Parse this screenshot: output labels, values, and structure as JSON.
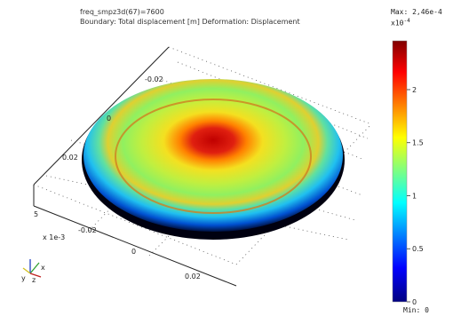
{
  "header": {
    "line1": "freq_smpz3d(67)=7600",
    "line2": "Boundary: Total displacement [m]   Deformation: Displacement"
  },
  "colorbar": {
    "max_label": "Max: 2,46e-4",
    "exponent_label": "x10",
    "exponent_power": "-4",
    "min_label": "Min: 0",
    "ticks": [
      "2",
      "1.5",
      "1",
      "0.5",
      "0"
    ],
    "tick_values": [
      2,
      1.5,
      1,
      0.5,
      0
    ],
    "range_min": 0,
    "range_max": 2.46
  },
  "plot": {
    "x_ticks": [
      "-0.02",
      "0.02",
      "0",
      "-0.02",
      "0",
      "0.02"
    ],
    "z_tick": "5",
    "z_scale_label": "x 1e-3",
    "axis_label_y": "y",
    "axis_label_z": "z",
    "axis_label_x": "x",
    "colors": {
      "red": "#cc1100",
      "yellow": "#f0e020",
      "green": "#80e060",
      "cyan": "#20d0f0",
      "blue": "#0030a0",
      "dark_navy": "#000020"
    }
  }
}
